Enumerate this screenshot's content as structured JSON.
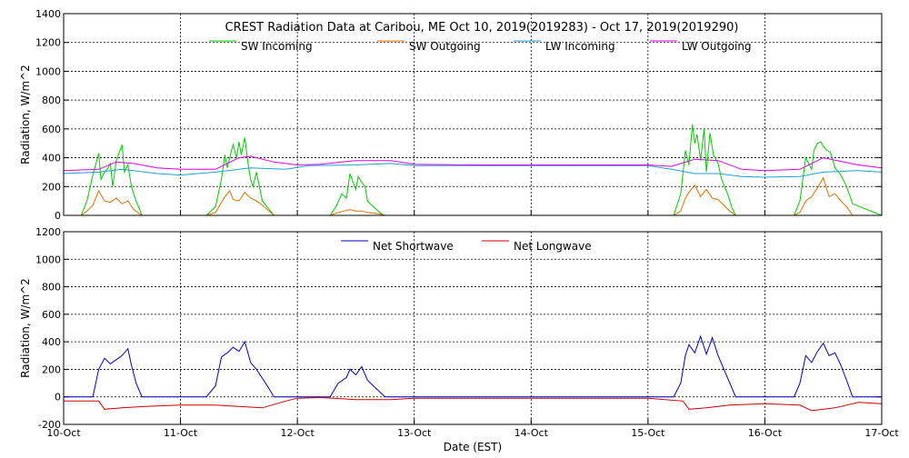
{
  "chart_data": [
    {
      "type": "line",
      "title": "CREST Radiation Data at Caribou, ME   Oct 10, 2019(2019283) - Oct 17, 2019(2019290)",
      "ylabel": "Radiation, W/m^2",
      "xlabel": "",
      "x_unit": "days since 10-Oct 00:00 EST",
      "xlim": [
        0,
        7
      ],
      "ylim": [
        0,
        1400
      ],
      "yticks": [
        0,
        200,
        400,
        600,
        800,
        1000,
        1200,
        1400
      ],
      "grid": true,
      "legend_position": "top",
      "series": [
        {
          "name": "SW Incoming",
          "color": "#00cc00",
          "x": [
            0,
            0.15,
            0.2,
            0.25,
            0.3,
            0.32,
            0.35,
            0.38,
            0.4,
            0.42,
            0.45,
            0.5,
            0.52,
            0.55,
            0.58,
            0.6,
            0.62,
            0.65,
            0.67,
            1.0,
            1.22,
            1.3,
            1.35,
            1.38,
            1.4,
            1.45,
            1.48,
            1.5,
            1.52,
            1.55,
            1.58,
            1.6,
            1.62,
            1.65,
            1.7,
            1.75,
            1.8,
            2.0,
            2.28,
            2.33,
            2.38,
            2.42,
            2.45,
            2.48,
            2.5,
            2.52,
            2.55,
            2.58,
            2.6,
            2.65,
            2.72,
            2.75,
            3.0,
            4.0,
            5.0,
            5.22,
            5.28,
            5.32,
            5.35,
            5.38,
            5.4,
            5.42,
            5.45,
            5.48,
            5.5,
            5.53,
            5.56,
            5.6,
            5.63,
            5.68,
            5.72,
            5.75,
            6.0,
            6.25,
            6.3,
            6.35,
            6.4,
            6.42,
            6.45,
            6.48,
            6.5,
            6.53,
            6.56,
            6.6,
            6.65,
            6.7,
            6.75,
            7.0
          ],
          "y": [
            0,
            0,
            100,
            280,
            430,
            250,
            300,
            330,
            360,
            200,
            380,
            490,
            300,
            350,
            200,
            150,
            100,
            40,
            0,
            0,
            0,
            60,
            250,
            420,
            330,
            490,
            400,
            510,
            420,
            540,
            350,
            250,
            200,
            300,
            100,
            50,
            0,
            0,
            0,
            60,
            150,
            120,
            290,
            220,
            180,
            270,
            230,
            200,
            100,
            60,
            10,
            0,
            0,
            0,
            0,
            0,
            150,
            450,
            350,
            630,
            500,
            560,
            380,
            600,
            300,
            570,
            420,
            360,
            250,
            150,
            50,
            0,
            0,
            0,
            100,
            400,
            320,
            450,
            500,
            510,
            480,
            450,
            440,
            330,
            280,
            200,
            80,
            0
          ]
        },
        {
          "name": "SW Outgoing",
          "color": "#e07000",
          "x": [
            0,
            0.15,
            0.2,
            0.25,
            0.3,
            0.35,
            0.4,
            0.45,
            0.5,
            0.55,
            0.6,
            0.67,
            1.0,
            1.22,
            1.3,
            1.38,
            1.42,
            1.45,
            1.5,
            1.55,
            1.6,
            1.65,
            1.7,
            1.8,
            2.0,
            2.28,
            2.35,
            2.45,
            2.5,
            2.55,
            2.6,
            2.7,
            2.75,
            3.0,
            4.0,
            5.0,
            5.22,
            5.28,
            5.32,
            5.35,
            5.4,
            5.45,
            5.5,
            5.55,
            5.6,
            5.65,
            5.7,
            5.75,
            6.0,
            6.25,
            6.3,
            6.35,
            6.4,
            6.45,
            6.5,
            6.55,
            6.6,
            6.65,
            6.7,
            6.75,
            7.0
          ],
          "y": [
            0,
            0,
            30,
            70,
            170,
            100,
            90,
            120,
            80,
            100,
            40,
            0,
            0,
            0,
            20,
            130,
            170,
            110,
            100,
            160,
            120,
            100,
            70,
            0,
            0,
            0,
            20,
            40,
            30,
            30,
            20,
            10,
            0,
            0,
            0,
            0,
            0,
            30,
            120,
            160,
            210,
            130,
            180,
            120,
            110,
            70,
            30,
            0,
            0,
            0,
            20,
            100,
            130,
            190,
            260,
            130,
            150,
            100,
            60,
            0,
            0
          ]
        },
        {
          "name": "LW Incoming",
          "color": "#1fa0d0",
          "x": [
            0,
            0.3,
            0.5,
            0.8,
            1.0,
            1.3,
            1.6,
            1.9,
            2.1,
            2.5,
            2.8,
            3.0,
            3.5,
            4.0,
            4.5,
            5.0,
            5.2,
            5.4,
            5.6,
            5.8,
            6.0,
            6.3,
            6.5,
            6.8,
            7.0
          ],
          "y": [
            290,
            300,
            320,
            290,
            280,
            300,
            330,
            320,
            345,
            350,
            360,
            345,
            345,
            345,
            345,
            345,
            320,
            290,
            290,
            270,
            265,
            270,
            300,
            310,
            300
          ]
        },
        {
          "name": "LW Outgoing",
          "color": "#e000e0",
          "x": [
            0,
            0.3,
            0.45,
            0.6,
            0.8,
            1.0,
            1.3,
            1.5,
            1.6,
            1.8,
            2.0,
            2.2,
            2.5,
            2.8,
            3.0,
            3.5,
            4.0,
            4.5,
            5.0,
            5.2,
            5.4,
            5.6,
            5.8,
            6.0,
            6.3,
            6.5,
            6.8,
            7.0
          ],
          "y": [
            310,
            320,
            370,
            360,
            330,
            320,
            320,
            400,
            410,
            370,
            350,
            355,
            380,
            380,
            355,
            350,
            350,
            350,
            350,
            340,
            390,
            380,
            320,
            310,
            320,
            400,
            350,
            330
          ]
        }
      ]
    },
    {
      "type": "line",
      "title": "",
      "ylabel": "Radiation, W/m^2",
      "xlabel": "Date (EST)",
      "x_unit": "days since 10-Oct 00:00 EST",
      "xlim": [
        0,
        7
      ],
      "ylim": [
        -200,
        1200
      ],
      "yticks": [
        -200,
        0,
        200,
        400,
        600,
        800,
        1000,
        1200
      ],
      "grid": true,
      "legend_position": "top",
      "categories": [
        "10-Oct",
        "11-Oct",
        "12-Oct",
        "13-Oct",
        "14-Oct",
        "15-Oct",
        "16-Oct",
        "17-Oct"
      ],
      "series": [
        {
          "name": "Net Shortwave",
          "color": "#0000c0",
          "x": [
            0,
            0.25,
            0.3,
            0.35,
            0.4,
            0.45,
            0.5,
            0.55,
            0.58,
            0.62,
            0.67,
            1.0,
            1.22,
            1.3,
            1.35,
            1.4,
            1.45,
            1.5,
            1.55,
            1.6,
            1.65,
            1.75,
            1.8,
            2.0,
            2.28,
            2.35,
            2.42,
            2.45,
            2.5,
            2.55,
            2.6,
            2.65,
            2.75,
            3.0,
            4.0,
            5.0,
            5.22,
            5.28,
            5.32,
            5.35,
            5.4,
            5.45,
            5.5,
            5.55,
            5.6,
            5.65,
            5.72,
            5.75,
            6.0,
            6.25,
            6.3,
            6.35,
            6.4,
            6.45,
            6.5,
            6.55,
            6.6,
            6.65,
            6.7,
            6.75,
            7.0
          ],
          "y": [
            0,
            0,
            200,
            280,
            240,
            270,
            300,
            350,
            230,
            100,
            0,
            0,
            0,
            80,
            290,
            320,
            360,
            330,
            400,
            250,
            200,
            70,
            0,
            0,
            0,
            100,
            140,
            200,
            160,
            220,
            120,
            80,
            0,
            0,
            0,
            0,
            0,
            100,
            300,
            380,
            320,
            440,
            310,
            430,
            300,
            200,
            60,
            0,
            0,
            0,
            100,
            300,
            250,
            330,
            390,
            300,
            320,
            230,
            120,
            0,
            0
          ]
        },
        {
          "name": "Net Longwave",
          "color": "#d00000",
          "x": [
            0,
            0.3,
            0.35,
            0.5,
            0.7,
            1.0,
            1.3,
            1.5,
            1.7,
            1.9,
            2.0,
            2.2,
            2.5,
            2.8,
            3.0,
            3.5,
            4.0,
            4.5,
            5.0,
            5.3,
            5.35,
            5.5,
            5.7,
            6.0,
            6.3,
            6.4,
            6.6,
            6.8,
            7.0
          ],
          "y": [
            -30,
            -30,
            -90,
            -80,
            -70,
            -60,
            -60,
            -70,
            -80,
            -30,
            -10,
            -5,
            -20,
            -20,
            -10,
            -10,
            -10,
            -10,
            -10,
            -30,
            -90,
            -80,
            -60,
            -50,
            -60,
            -100,
            -80,
            -40,
            -50
          ]
        }
      ]
    }
  ]
}
